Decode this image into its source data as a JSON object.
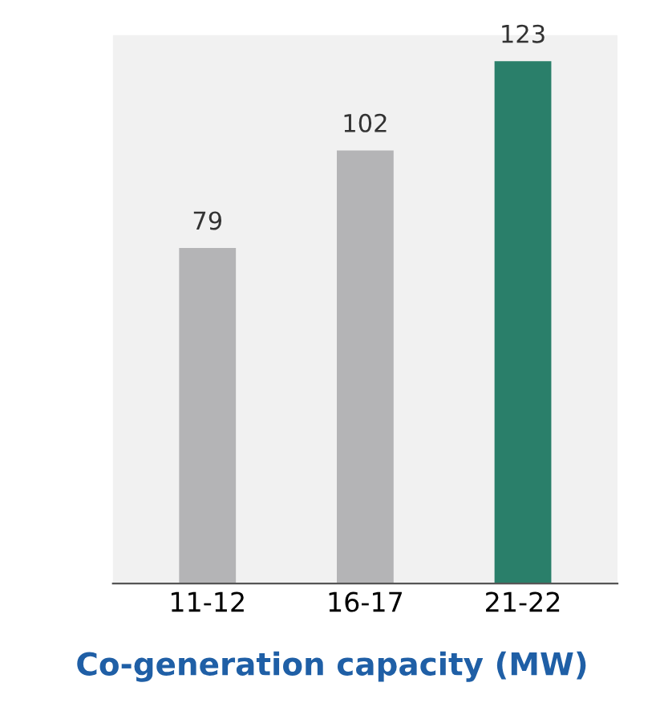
{
  "chart_data": {
    "type": "bar",
    "title": "Co-generation capacity (MW)",
    "categories": [
      "11-12",
      "16-17",
      "21-22"
    ],
    "values": [
      79,
      102,
      123
    ],
    "colors": [
      "#b4b4b6",
      "#b4b4b6",
      "#2a7f6a"
    ],
    "data_labels": true,
    "grid": false,
    "legend": false,
    "tick_labels": "x"
  }
}
